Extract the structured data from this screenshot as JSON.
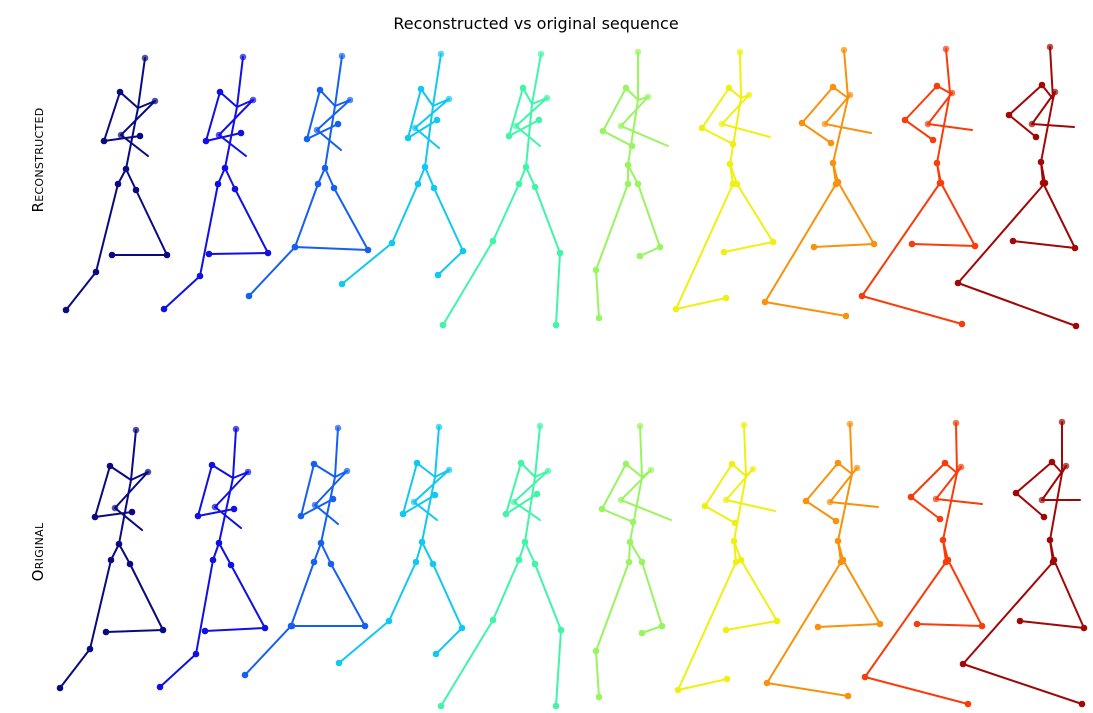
{
  "title": "Reconstructed vs original sequence",
  "rows": [
    {
      "label": "Reconstructed"
    },
    {
      "label": "Original"
    }
  ],
  "frame_count": 10,
  "frame_colors": [
    "#0a0a80",
    "#1010e6",
    "#1460f0",
    "#10c8f0",
    "#40f5a8",
    "#98f560",
    "#f0f010",
    "#f8920c",
    "#f83c0a",
    "#a00808"
  ]
}
